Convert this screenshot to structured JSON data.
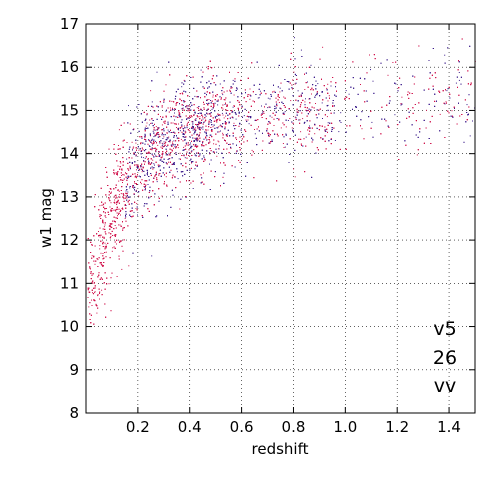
{
  "chart_data": {
    "type": "scatter",
    "title": "",
    "xlabel": "redshift",
    "ylabel": "w1 mag",
    "xlim": [
      0.0,
      1.5
    ],
    "ylim": [
      8,
      17
    ],
    "xticks": [
      0.2,
      0.4,
      0.6,
      0.8,
      1.0,
      1.2,
      1.4
    ],
    "yticks": [
      8,
      9,
      10,
      11,
      12,
      13,
      14,
      15,
      16,
      17
    ],
    "xtick_labels": [
      "0.2",
      "0.4",
      "0.6",
      "0.8",
      "1.0",
      "1.2",
      "1.4"
    ],
    "ytick_labels": [
      "8",
      "9",
      "10",
      "11",
      "12",
      "13",
      "14",
      "15",
      "16",
      "17"
    ],
    "grid": true,
    "grid_style": "dotted",
    "annotations": [
      "v5",
      "26",
      "vv"
    ],
    "colors": {
      "points_primary": "#d0104a",
      "points_secondary": "#3a1a8a"
    },
    "density_description_points": [
      {
        "x": 0.01,
        "y": 10.0
      },
      {
        "x": 0.02,
        "y": 10.5
      },
      {
        "x": 0.03,
        "y": 11.0
      },
      {
        "x": 0.05,
        "y": 11.8
      },
      {
        "x": 0.08,
        "y": 12.5
      },
      {
        "x": 0.1,
        "y": 13.0
      },
      {
        "x": 0.15,
        "y": 13.5
      },
      {
        "x": 0.2,
        "y": 13.8
      },
      {
        "x": 0.25,
        "y": 14.0
      },
      {
        "x": 0.3,
        "y": 14.2
      },
      {
        "x": 0.4,
        "y": 14.3
      },
      {
        "x": 0.5,
        "y": 14.5
      },
      {
        "x": 0.6,
        "y": 14.6
      },
      {
        "x": 0.8,
        "y": 14.8
      },
      {
        "x": 1.0,
        "y": 15.0
      },
      {
        "x": 1.2,
        "y": 15.2
      },
      {
        "x": 1.4,
        "y": 15.4
      }
    ]
  }
}
